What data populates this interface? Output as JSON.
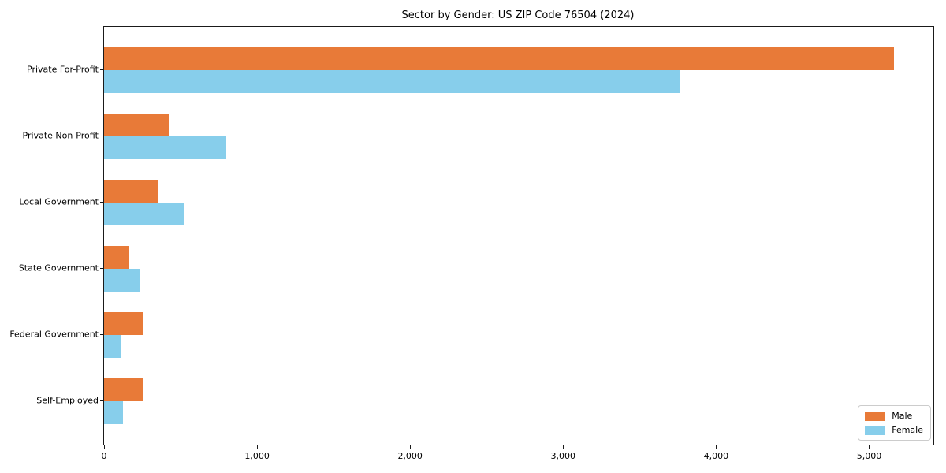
{
  "chart_data": {
    "type": "bar",
    "orientation": "horizontal",
    "title": "Sector by Gender: US ZIP Code 76504 (2024)",
    "categories": [
      "Private For-Profit",
      "Private Non-Profit",
      "Local Government",
      "State Government",
      "Federal Government",
      "Self-Employed"
    ],
    "series": [
      {
        "name": "Male",
        "color": "#e87a38",
        "values": [
          5160,
          420,
          350,
          165,
          250,
          255
        ]
      },
      {
        "name": "Female",
        "color": "#87ceeb",
        "values": [
          3760,
          800,
          525,
          230,
          110,
          125
        ]
      }
    ],
    "xlabel": "",
    "ylabel": "",
    "xlim": [
      0,
      5420
    ],
    "x_ticks": [
      0,
      1000,
      2000,
      3000,
      4000,
      5000
    ],
    "x_tick_labels": [
      "0",
      "1,000",
      "2,000",
      "3,000",
      "4,000",
      "5,000"
    ],
    "legend_position": "lower right",
    "grid": false
  },
  "colors": {
    "male": "#e87a38",
    "female": "#87ceeb",
    "spine": "#1a1a1a",
    "background": "#ffffff"
  }
}
